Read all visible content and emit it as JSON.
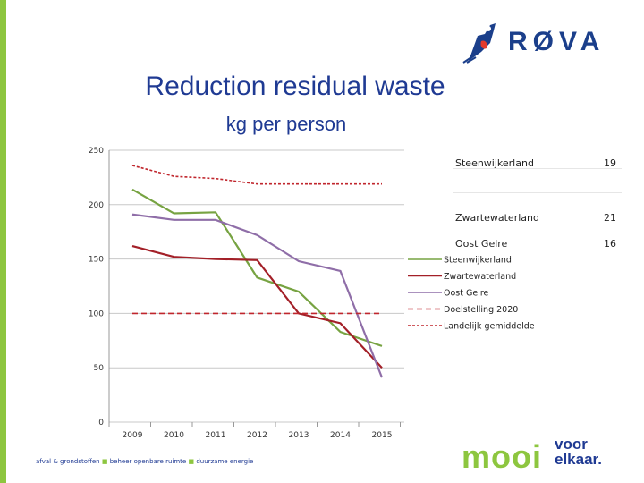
{
  "brand": {
    "logo_text": "RØVA"
  },
  "header": {
    "title": "Reduction residual waste",
    "subtitle": "kg per person"
  },
  "side_table": [
    {
      "name": "Steenwijkerland",
      "value": "19"
    },
    {
      "name": "Zwartewaterland",
      "value": "21"
    },
    {
      "name": "Oost Gelre",
      "value": "16"
    }
  ],
  "footer": {
    "items": [
      "afval & grondstoffen",
      "beheer openbare ruimte",
      "duurzame energie"
    ],
    "slogan_main": "mooi",
    "slogan_line1": "voor",
    "slogan_line2": "elkaar."
  },
  "chart_data": {
    "type": "line",
    "title": "Reduction residual waste",
    "ylabel": "kg per person",
    "xlabel": "",
    "x": [
      "2009",
      "2010",
      "2011",
      "2012",
      "2013",
      "2014",
      "2015"
    ],
    "ylim": [
      0,
      250
    ],
    "yticks": [
      0,
      50,
      100,
      150,
      200,
      250
    ],
    "series": [
      {
        "name": "Steenwijkerland",
        "color": "#77a342",
        "dash": "solid",
        "values": [
          214,
          192,
          193,
          133,
          120,
          83,
          70
        ]
      },
      {
        "name": "Zwartewaterland",
        "color": "#a32028",
        "dash": "solid",
        "values": [
          162,
          152,
          150,
          149,
          100,
          91,
          50
        ]
      },
      {
        "name": "Oost Gelre",
        "color": "#8f6ea8",
        "dash": "solid",
        "values": [
          191,
          186,
          186,
          172,
          148,
          139,
          41
        ]
      },
      {
        "name": "Doelstelling 2020",
        "color": "#c0262d",
        "dash": "dashed",
        "values": [
          100,
          100,
          100,
          100,
          100,
          100,
          100
        ]
      },
      {
        "name": "Landelijk gemiddelde",
        "color": "#c0262d",
        "dash": "dotted",
        "values": [
          236,
          226,
          224,
          219,
          219,
          219,
          219
        ]
      }
    ]
  }
}
